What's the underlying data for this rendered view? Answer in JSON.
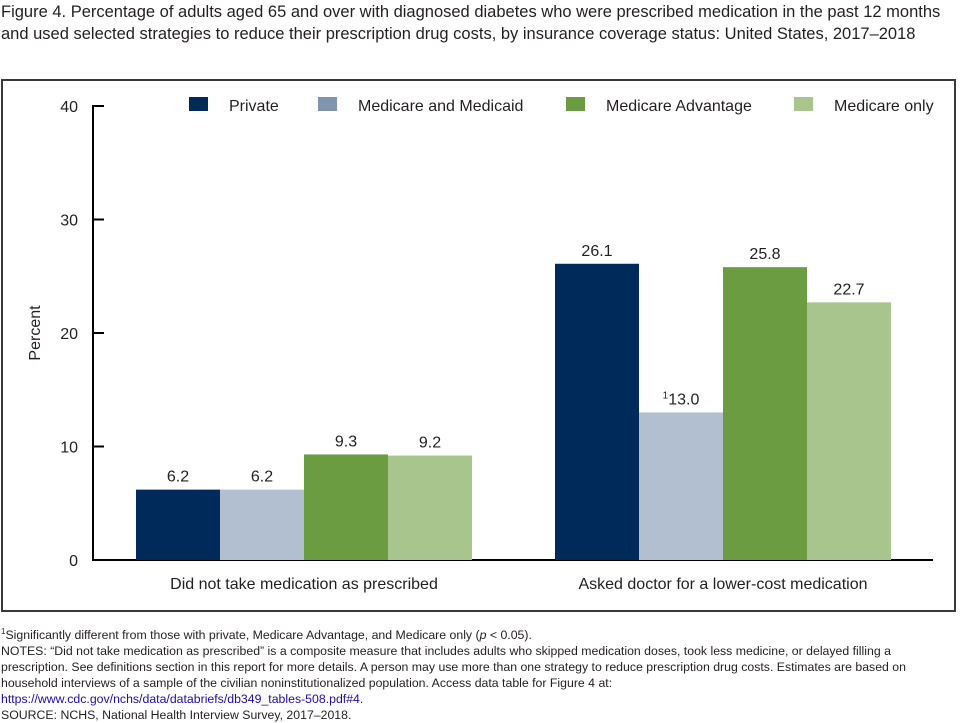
{
  "title": "Figure 4. Percentage of adults aged 65 and over with diagnosed diabetes who were prescribed medication in the past 12 months and used selected strategies to reduce their prescription drug costs, by insurance coverage status: United States, 2017–2018",
  "chart_data": {
    "type": "bar",
    "title": "Percentage of adults aged 65 and over with diagnosed diabetes who were prescribed medication in the past 12 months and used selected strategies to reduce their prescription drug costs, by insurance coverage status: United States, 2017–2018",
    "xlabel": "",
    "ylabel": "Percent",
    "ylim": [
      0,
      40
    ],
    "yticks": [
      0,
      10,
      20,
      30,
      40
    ],
    "grid": false,
    "legend_position": "top",
    "categories": [
      "Did not take medication as prescribed",
      "Asked doctor for a lower-cost medication"
    ],
    "series": [
      {
        "name": "Private",
        "color": "#002a5a",
        "values": [
          6.2,
          26.1
        ],
        "labels": [
          "6.2",
          "26.1"
        ],
        "superscripts": [
          "",
          ""
        ]
      },
      {
        "name": "Medicare and Medicaid",
        "color": "#b1bfd0",
        "legend_color": "#7f95ae",
        "values": [
          6.2,
          13.0
        ],
        "labels": [
          "6.2",
          "13.0"
        ],
        "superscripts": [
          "",
          "1"
        ]
      },
      {
        "name": "Medicare Advantage",
        "color": "#6b9c42",
        "values": [
          9.3,
          25.8
        ],
        "labels": [
          "9.3",
          "25.8"
        ],
        "superscripts": [
          "",
          ""
        ]
      },
      {
        "name": "Medicare only",
        "color": "#a8c58e",
        "values": [
          9.2,
          22.7
        ],
        "labels": [
          "9.2",
          "22.7"
        ],
        "superscripts": [
          "",
          ""
        ]
      }
    ]
  },
  "footnotes": {
    "sig_marker": "1",
    "sig_text_before": "Significantly different from those with private, Medicare Advantage, and Medicare only (",
    "sig_p": "p",
    "sig_text_after": " < 0.05).",
    "notes": "NOTES: “Did not take medication as prescribed” is a composite measure that includes adults who skipped medication doses, took less medicine, or delayed filling a prescription. See definitions section in this report for more details. A person may use more than one strategy to reduce prescription drug costs. Estimates are based on household interviews of a sample of the civilian noninstitutionalized population. Access data table for Figure 4 at:",
    "link": "https://www.cdc.gov/nchs/data/databriefs/db349_tables-508.pdf#4",
    "link_suffix": ".",
    "source": "SOURCE: NCHS, National Health Interview Survey, 2017–2018."
  }
}
